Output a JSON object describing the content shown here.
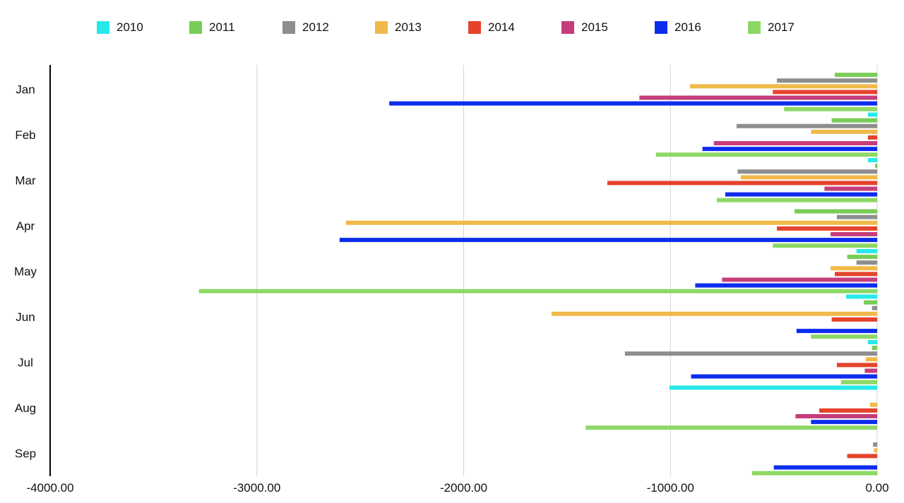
{
  "chart_data": {
    "type": "bar",
    "orientation": "horizontal",
    "categories": [
      "Jan",
      "Feb",
      "Mar",
      "Apr",
      "May",
      "Jun",
      "Jul",
      "Aug",
      "Sep"
    ],
    "xlim": [
      -4000,
      0
    ],
    "xticks": [
      -4000,
      -3000,
      -2000,
      -1000,
      0
    ],
    "xtick_labels": [
      "-4000.00",
      "-3000.00",
      "-2000.00",
      "-1000.00",
      "0.00"
    ],
    "grid": "vertical",
    "legend_position": "top",
    "title": "",
    "xlabel": "",
    "ylabel": "",
    "series": [
      {
        "name": "2010",
        "color": "#27e9ea",
        "values": [
          0,
          -45,
          -45,
          0,
          -100,
          -150,
          -45,
          -1005,
          0
        ]
      },
      {
        "name": "2011",
        "color": "#78cc57",
        "values": [
          -205,
          -220,
          -10,
          -400,
          -145,
          -65,
          -25,
          0,
          0
        ]
      },
      {
        "name": "2012",
        "color": "#8e8e8e",
        "values": [
          -485,
          -680,
          -675,
          -195,
          -100,
          -25,
          -1220,
          0,
          -20
        ]
      },
      {
        "name": "2013",
        "color": "#f0b94a",
        "values": [
          -905,
          -320,
          -660,
          -2570,
          -225,
          -1575,
          -55,
          -35,
          -15
        ]
      },
      {
        "name": "2014",
        "color": "#e4432c",
        "values": [
          -505,
          -45,
          -1305,
          -485,
          -205,
          -220,
          -195,
          -280,
          -145
        ]
      },
      {
        "name": "2015",
        "color": "#c53d7a",
        "values": [
          -1150,
          -790,
          -255,
          -225,
          -750,
          0,
          -60,
          -395,
          0
        ]
      },
      {
        "name": "2016",
        "color": "#0c2ded",
        "values": [
          -2360,
          -845,
          -735,
          -2600,
          -880,
          -390,
          -900,
          -320,
          -500
        ]
      },
      {
        "name": "2017",
        "color": "#8dd865",
        "values": [
          -450,
          -1070,
          -775,
          -505,
          -3280,
          -320,
          -175,
          -1410,
          -605
        ]
      }
    ]
  }
}
